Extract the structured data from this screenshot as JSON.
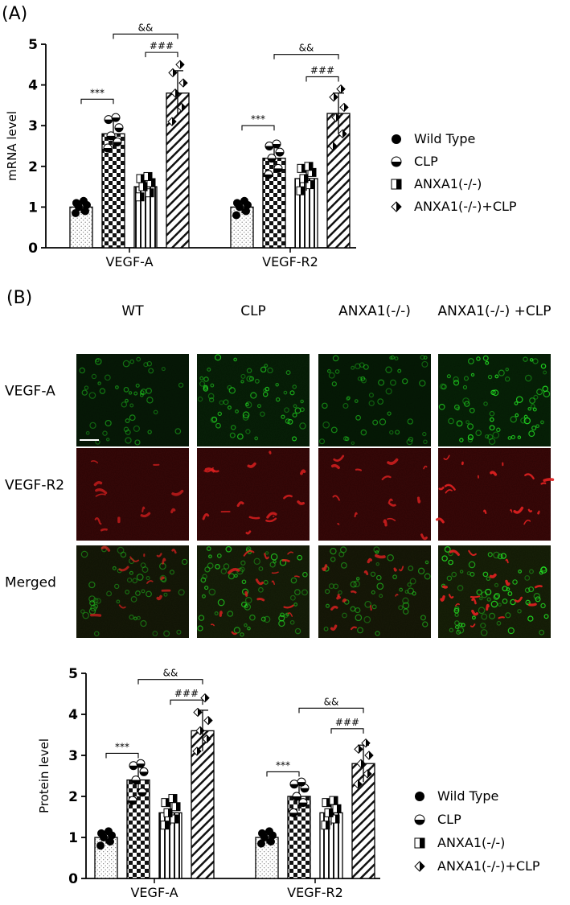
{
  "panel_a_label": "(A)",
  "panel_b_label": "(B)",
  "micrograph": {
    "columns": [
      "WT",
      "CLP",
      "ANXA1(-/-)",
      "ANXA1(-/-) +CLP"
    ],
    "rows": [
      "VEGF-A",
      "VEGF-R2",
      "Merged"
    ],
    "colors": {
      "vegf_a": "#22dd22",
      "vegf_r2": "#e02020",
      "background": "#060606"
    }
  },
  "chart_data": [
    {
      "type": "bar",
      "ylabel": "mRNA level",
      "ylim": [
        0,
        5
      ],
      "yticks": [
        0,
        1,
        2,
        3,
        4,
        5
      ],
      "categories": [
        "VEGF-A",
        "VEGF-R2"
      ],
      "series": [
        {
          "name": "Wild Type",
          "values": [
            1.0,
            1.0
          ],
          "errors": [
            0.15,
            0.15
          ],
          "points": [
            [
              0.85,
              0.9,
              1.0,
              1.05,
              1.1,
              1.15
            ],
            [
              0.8,
              0.9,
              1.0,
              1.05,
              1.1,
              1.15
            ]
          ]
        },
        {
          "name": "CLP",
          "values": [
            2.8,
            2.2
          ],
          "errors": [
            0.35,
            0.35
          ],
          "points": [
            [
              2.45,
              2.6,
              2.75,
              2.95,
              3.15,
              3.2
            ],
            [
              1.8,
              1.95,
              2.2,
              2.35,
              2.5,
              2.55
            ]
          ]
        },
        {
          "name": "ANXA1(-/-)",
          "values": [
            1.5,
            1.7
          ],
          "errors": [
            0.25,
            0.3
          ],
          "points": [
            [
              1.25,
              1.35,
              1.5,
              1.6,
              1.7,
              1.75
            ],
            [
              1.4,
              1.55,
              1.7,
              1.85,
              1.95,
              2.0
            ]
          ]
        },
        {
          "name": "ANXA1(-/-)+CLP",
          "values": [
            3.8,
            3.3
          ],
          "errors": [
            0.55,
            0.5
          ],
          "points": [
            [
              3.1,
              3.45,
              3.8,
              4.05,
              4.3,
              4.5
            ],
            [
              2.5,
              2.8,
              3.2,
              3.45,
              3.7,
              3.9
            ]
          ]
        }
      ],
      "significance": [
        {
          "text": "***",
          "group": 0,
          "from": 0,
          "to": 1,
          "level": 3.65
        },
        {
          "text": "###",
          "group": 0,
          "from": 2,
          "to": 3,
          "level": 4.8
        },
        {
          "text": "&&",
          "group": 0,
          "from": 1,
          "to": 3,
          "level": 5.25
        },
        {
          "text": "***",
          "group": 1,
          "from": 0,
          "to": 1,
          "level": 3.0
        },
        {
          "text": "###",
          "group": 1,
          "from": 2,
          "to": 3,
          "level": 4.2
        },
        {
          "text": "&&",
          "group": 1,
          "from": 1,
          "to": 3,
          "level": 4.75
        }
      ],
      "legend_position": "right"
    },
    {
      "type": "bar",
      "ylabel": "Protein level",
      "ylim": [
        0,
        5
      ],
      "yticks": [
        0,
        1,
        2,
        3,
        4,
        5
      ],
      "categories": [
        "VEGF-A",
        "VEGF-R2"
      ],
      "series": [
        {
          "name": "Wild Type",
          "values": [
            1.0,
            1.0
          ],
          "errors": [
            0.15,
            0.15
          ],
          "points": [
            [
              0.8,
              0.9,
              1.0,
              1.05,
              1.1,
              1.15
            ],
            [
              0.85,
              0.9,
              1.0,
              1.05,
              1.1,
              1.15
            ]
          ]
        },
        {
          "name": "CLP",
          "values": [
            2.4,
            2.0
          ],
          "errors": [
            0.35,
            0.35
          ],
          "points": [
            [
              1.9,
              2.1,
              2.4,
              2.6,
              2.75,
              2.8
            ],
            [
              1.6,
              1.85,
              2.0,
              2.2,
              2.3,
              2.35
            ]
          ]
        },
        {
          "name": "ANXA1(-/-)",
          "values": [
            1.6,
            1.6
          ],
          "errors": [
            0.3,
            0.3
          ],
          "points": [
            [
              1.3,
              1.45,
              1.6,
              1.75,
              1.85,
              1.95
            ],
            [
              1.3,
              1.45,
              1.6,
              1.7,
              1.85,
              1.9
            ]
          ]
        },
        {
          "name": "ANXA1(-/-)+CLP",
          "values": [
            3.6,
            2.8
          ],
          "errors": [
            0.5,
            0.45
          ],
          "points": [
            [
              3.1,
              3.4,
              3.6,
              3.85,
              4.05,
              4.4
            ],
            [
              2.3,
              2.55,
              2.8,
              3.0,
              3.15,
              3.3
            ]
          ]
        }
      ],
      "significance": [
        {
          "text": "***",
          "group": 0,
          "from": 0,
          "to": 1,
          "level": 3.05
        },
        {
          "text": "###",
          "group": 0,
          "from": 2,
          "to": 3,
          "level": 4.35
        },
        {
          "text": "&&",
          "group": 0,
          "from": 1,
          "to": 3,
          "level": 4.85
        },
        {
          "text": "***",
          "group": 1,
          "from": 0,
          "to": 1,
          "level": 2.6
        },
        {
          "text": "###",
          "group": 1,
          "from": 2,
          "to": 3,
          "level": 3.65
        },
        {
          "text": "&&",
          "group": 1,
          "from": 1,
          "to": 3,
          "level": 4.15
        }
      ],
      "legend_position": "right"
    }
  ]
}
